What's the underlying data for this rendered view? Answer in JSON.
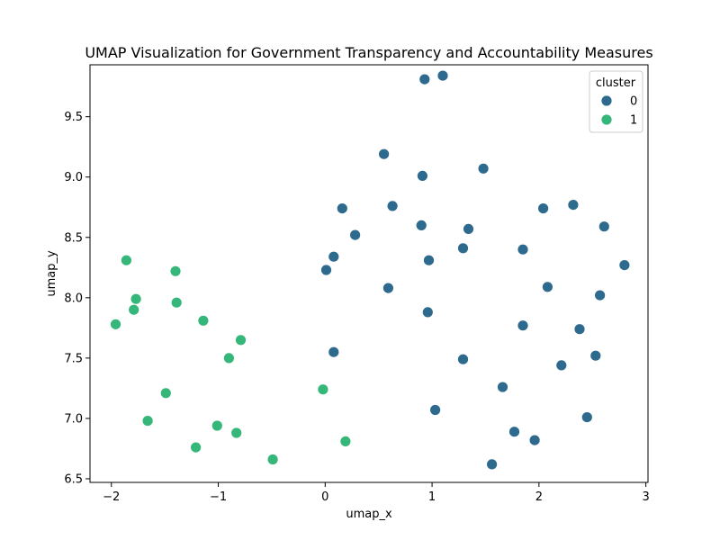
{
  "chart_data": {
    "type": "scatter",
    "title": "UMAP Visualization for Government Transparency and Accountability Measures",
    "xlabel": "umap_x",
    "ylabel": "umap_y",
    "xlim": [
      -2.2,
      3.02
    ],
    "ylim": [
      6.47,
      9.93
    ],
    "xticks": [
      -2,
      -1,
      0,
      1,
      2,
      3
    ],
    "yticks": [
      6.5,
      7.0,
      7.5,
      8.0,
      8.5,
      9.0,
      9.5
    ],
    "xtick_labels": [
      "−2",
      "−1",
      "0",
      "1",
      "2",
      "3"
    ],
    "ytick_labels": [
      "6.5",
      "7.0",
      "7.5",
      "8.0",
      "8.5",
      "9.0",
      "9.5"
    ],
    "grid": false,
    "legend": {
      "title": "cluster",
      "placement": "top-right",
      "entries": [
        {
          "label": "0",
          "color": "#2e6a8e"
        },
        {
          "label": "1",
          "color": "#35b779"
        }
      ]
    },
    "series": [
      {
        "name": "0",
        "color": "#2e6a8e",
        "points": [
          [
            0.93,
            9.81
          ],
          [
            1.1,
            9.84
          ],
          [
            0.55,
            9.19
          ],
          [
            1.48,
            9.07
          ],
          [
            0.91,
            9.01
          ],
          [
            0.16,
            8.74
          ],
          [
            0.63,
            8.76
          ],
          [
            2.04,
            8.74
          ],
          [
            2.32,
            8.77
          ],
          [
            0.9,
            8.6
          ],
          [
            1.34,
            8.57
          ],
          [
            2.61,
            8.59
          ],
          [
            0.28,
            8.52
          ],
          [
            1.29,
            8.41
          ],
          [
            1.85,
            8.4
          ],
          [
            0.08,
            8.34
          ],
          [
            0.97,
            8.31
          ],
          [
            2.8,
            8.27
          ],
          [
            0.01,
            8.23
          ],
          [
            0.59,
            8.08
          ],
          [
            2.08,
            8.09
          ],
          [
            2.57,
            8.02
          ],
          [
            0.96,
            7.88
          ],
          [
            1.85,
            7.77
          ],
          [
            2.38,
            7.74
          ],
          [
            0.08,
            7.55
          ],
          [
            1.29,
            7.49
          ],
          [
            2.53,
            7.52
          ],
          [
            2.21,
            7.44
          ],
          [
            1.66,
            7.26
          ],
          [
            1.03,
            7.07
          ],
          [
            2.45,
            7.01
          ],
          [
            1.77,
            6.89
          ],
          [
            1.96,
            6.82
          ],
          [
            1.56,
            6.62
          ]
        ]
      },
      {
        "name": "1",
        "color": "#35b779",
        "points": [
          [
            -1.86,
            8.31
          ],
          [
            -1.4,
            8.22
          ],
          [
            -1.77,
            7.99
          ],
          [
            -1.39,
            7.96
          ],
          [
            -1.79,
            7.9
          ],
          [
            -1.96,
            7.78
          ],
          [
            -1.14,
            7.81
          ],
          [
            -0.79,
            7.65
          ],
          [
            -0.9,
            7.5
          ],
          [
            -1.49,
            7.21
          ],
          [
            -0.02,
            7.24
          ],
          [
            -1.66,
            6.98
          ],
          [
            -1.01,
            6.94
          ],
          [
            -0.83,
            6.88
          ],
          [
            -1.21,
            6.76
          ],
          [
            0.19,
            6.81
          ],
          [
            -0.49,
            6.66
          ]
        ]
      }
    ]
  }
}
